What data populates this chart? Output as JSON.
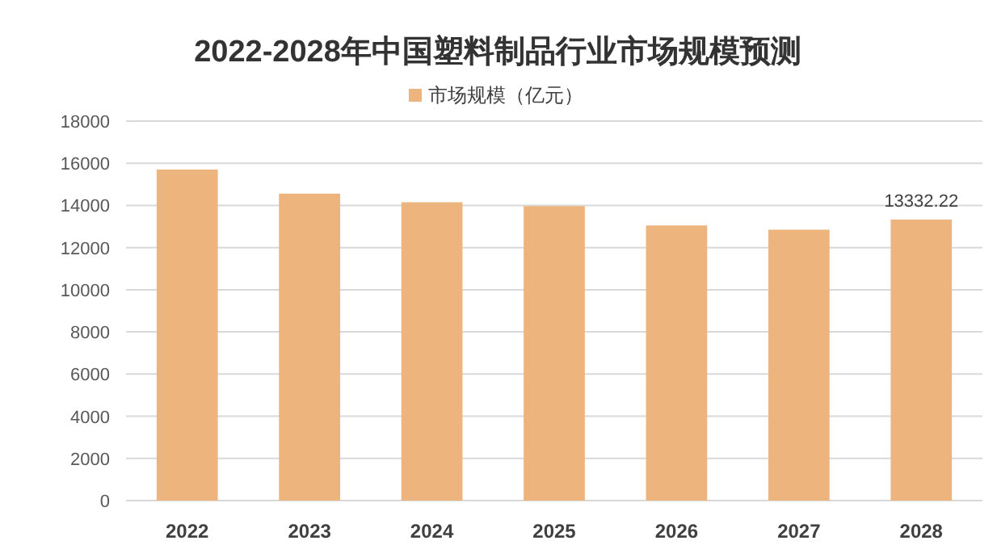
{
  "chart_data": {
    "type": "bar",
    "title": "2022-2028年中国塑料制品行业市场规模预测",
    "categories": [
      "2022",
      "2023",
      "2024",
      "2025",
      "2026",
      "2027",
      "2028"
    ],
    "series": [
      {
        "name": "市场规模（亿元）",
        "color": "#edb47e",
        "values": [
          15700,
          14560,
          14150,
          13970,
          13050,
          12850,
          13332.22
        ],
        "value_labels": [
          null,
          null,
          null,
          null,
          null,
          null,
          "13332.22"
        ]
      }
    ],
    "ylim": [
      0,
      18000
    ],
    "yticks": [
      0,
      2000,
      4000,
      6000,
      8000,
      10000,
      12000,
      14000,
      16000,
      18000
    ],
    "grid": "y",
    "legend": "top"
  }
}
